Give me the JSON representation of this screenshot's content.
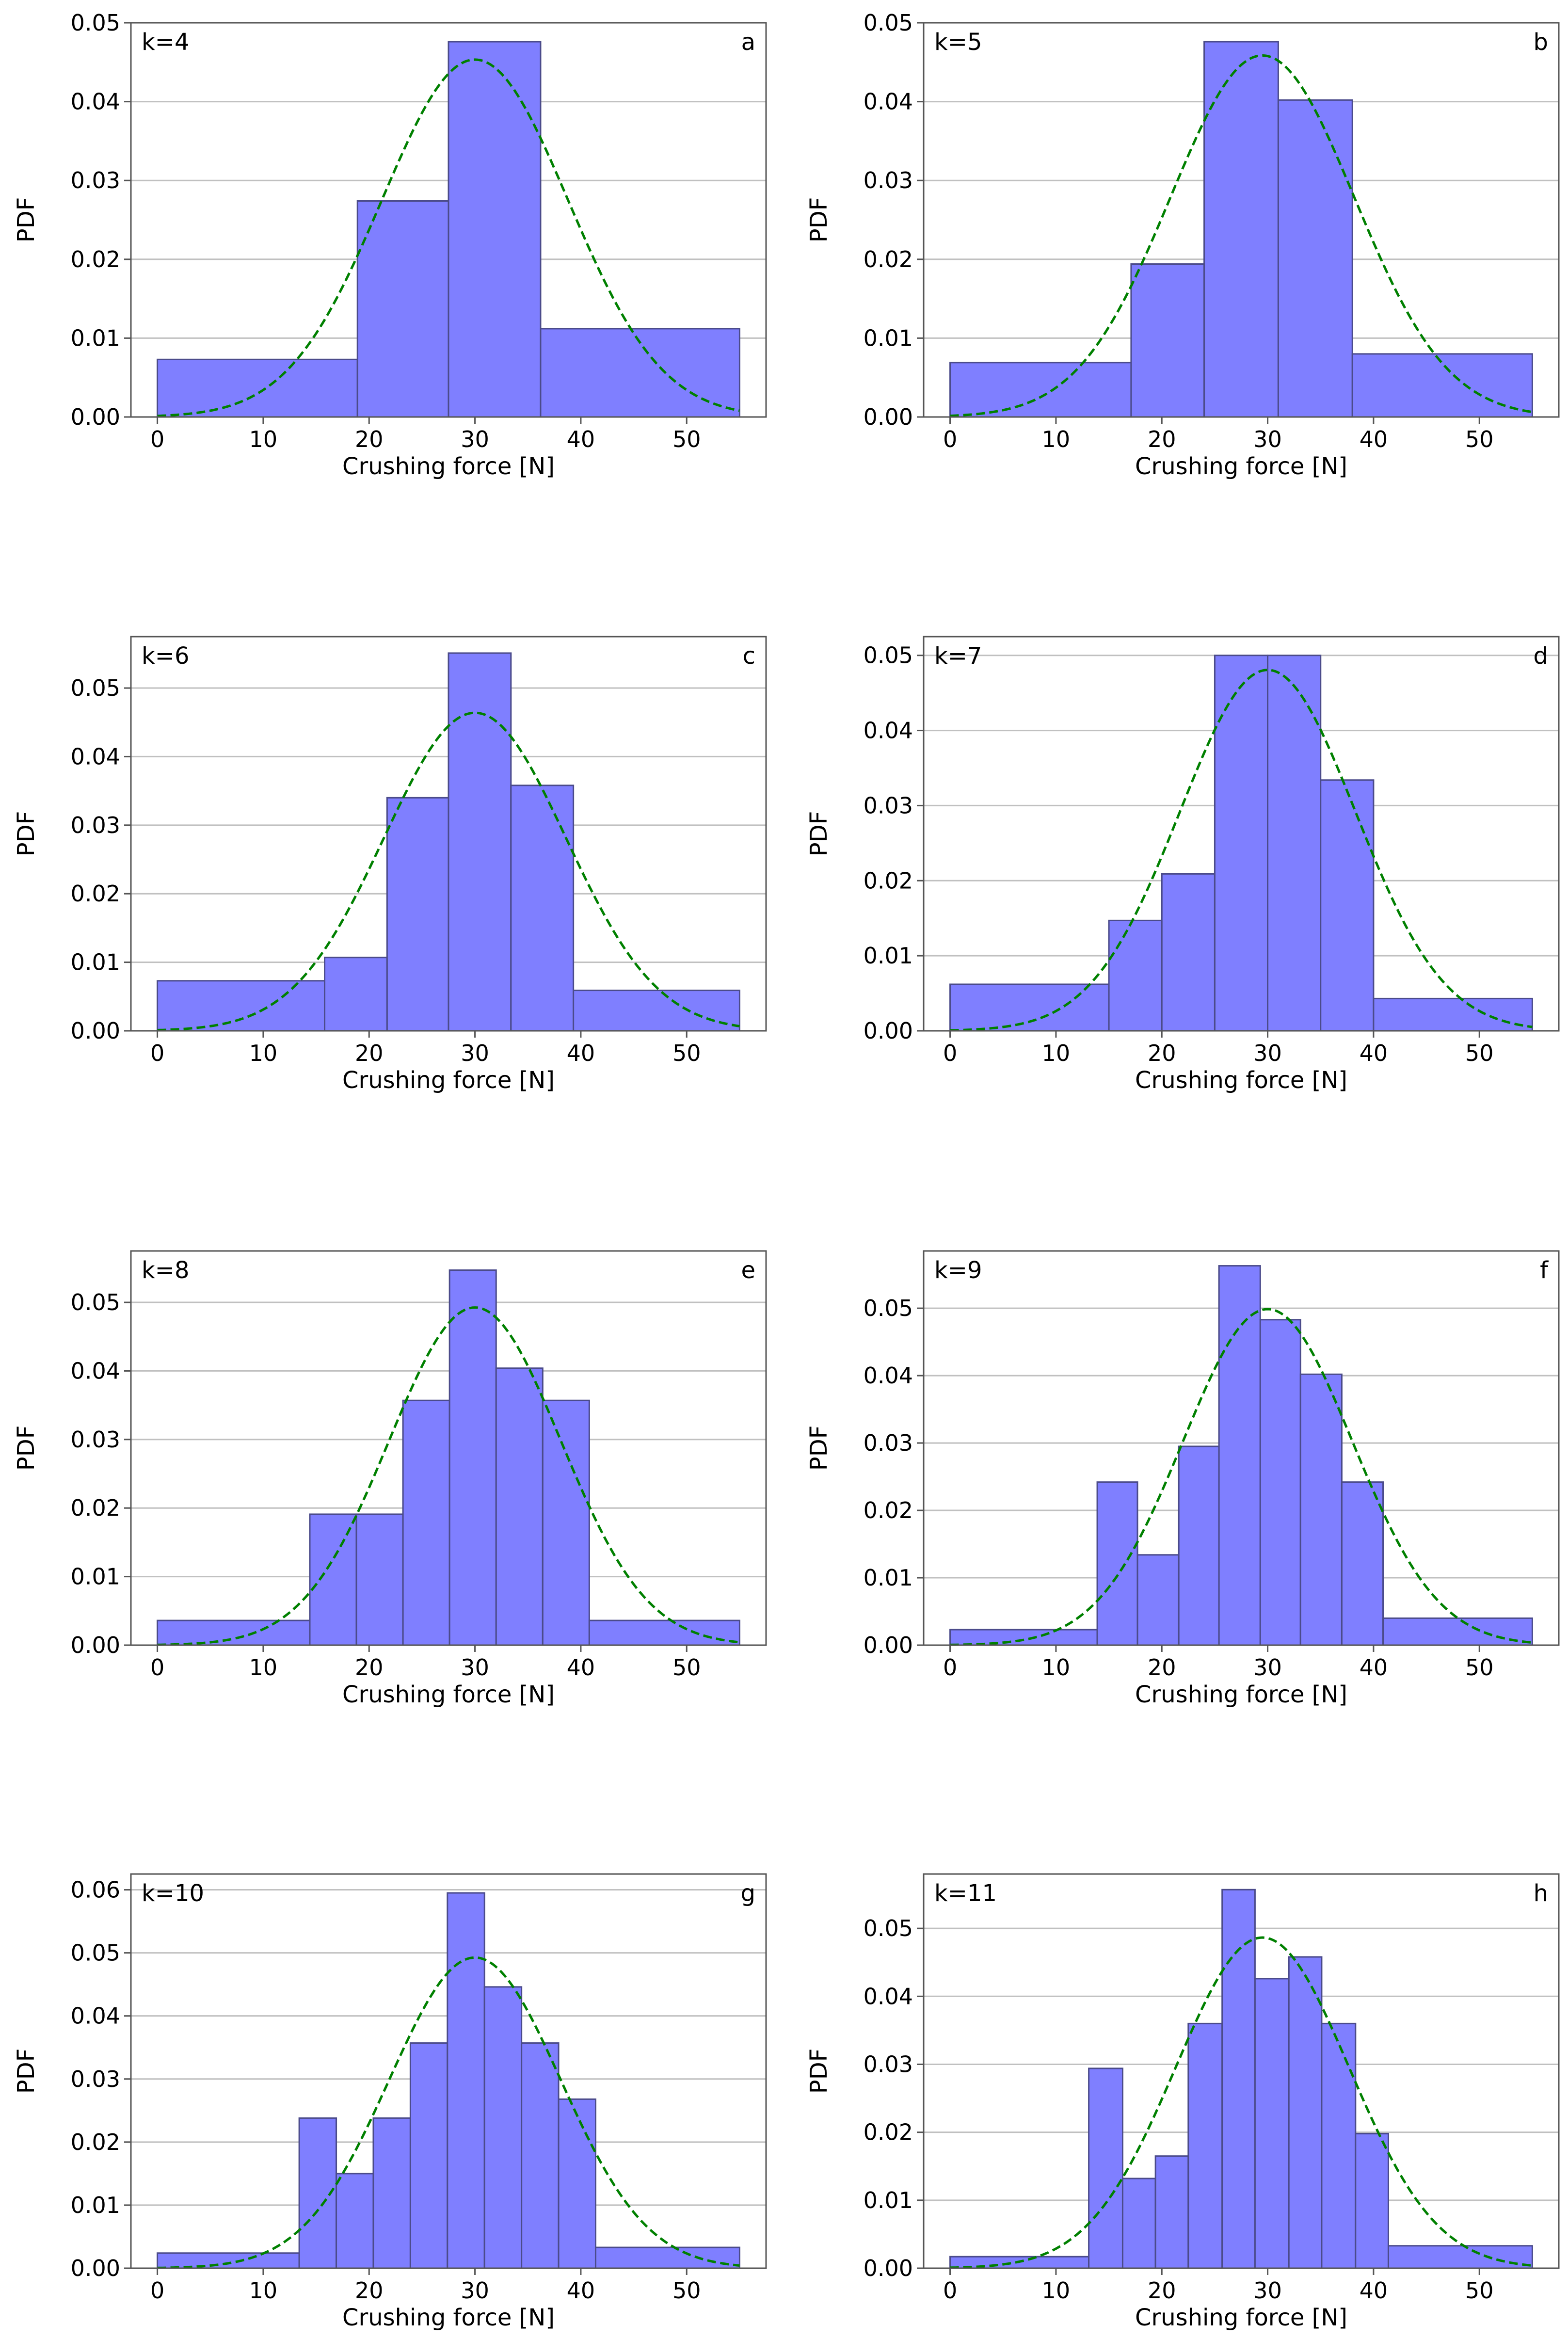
{
  "figure": {
    "type": "histogram_grid",
    "panel_layout": "4 rows x 2 columns"
  },
  "style": {
    "bar_fill": "#7f7fff",
    "bar_edge": "#4b4b8a",
    "curve_color": "#008000",
    "grid_color": "#c0c0c0",
    "axis_color": "#555555"
  },
  "chart_data": [
    {
      "type": "bar",
      "panel": "a",
      "k_label": "k=4",
      "xlabel": "Crushing force [N]",
      "ylabel": "PDF",
      "xlim": [
        -2.5,
        57.5
      ],
      "ylim": [
        0,
        0.05
      ],
      "xticks": [
        0,
        10,
        20,
        30,
        40,
        50
      ],
      "yticks": [
        0.0,
        0.01,
        0.02,
        0.03,
        0.04,
        0.05
      ],
      "ytick_labels": [
        "0.00",
        "0.01",
        "0.02",
        "0.03",
        "0.04",
        "0.05"
      ],
      "grid": "horizontal",
      "bins": [
        {
          "x0": 0,
          "x1": 18.9,
          "value": 0.0073
        },
        {
          "x0": 18.9,
          "x1": 27.5,
          "value": 0.0274
        },
        {
          "x0": 27.5,
          "x1": 36.2,
          "value": 0.0476
        },
        {
          "x0": 36.2,
          "x1": 55,
          "value": 0.0112
        }
      ],
      "normal_fit": {
        "mean": 30.0,
        "std": 8.8,
        "style": "dashed"
      }
    },
    {
      "type": "bar",
      "panel": "b",
      "k_label": "k=5",
      "xlabel": "Crushing force [N]",
      "ylabel": "PDF",
      "xlim": [
        -2.5,
        57.5
      ],
      "ylim": [
        0,
        0.05
      ],
      "xticks": [
        0,
        10,
        20,
        30,
        40,
        50
      ],
      "yticks": [
        0.0,
        0.01,
        0.02,
        0.03,
        0.04,
        0.05
      ],
      "ytick_labels": [
        "0.00",
        "0.01",
        "0.02",
        "0.03",
        "0.04",
        "0.05"
      ],
      "grid": "horizontal",
      "bins": [
        {
          "x0": 0,
          "x1": 17.1,
          "value": 0.0069
        },
        {
          "x0": 17.1,
          "x1": 24.0,
          "value": 0.0194
        },
        {
          "x0": 24.0,
          "x1": 31.0,
          "value": 0.0476
        },
        {
          "x0": 31.0,
          "x1": 38.0,
          "value": 0.0402
        },
        {
          "x0": 38.0,
          "x1": 55,
          "value": 0.008
        }
      ],
      "normal_fit": {
        "mean": 29.5,
        "std": 8.7,
        "style": "dashed"
      }
    },
    {
      "type": "bar",
      "panel": "c",
      "k_label": "k=6",
      "xlabel": "Crushing force [N]",
      "ylabel": "PDF",
      "xlim": [
        -2.5,
        57.5
      ],
      "ylim": [
        0,
        0.0575
      ],
      "xticks": [
        0,
        10,
        20,
        30,
        40,
        50
      ],
      "yticks": [
        0.0,
        0.01,
        0.02,
        0.03,
        0.04,
        0.05
      ],
      "ytick_labels": [
        "0.00",
        "0.01",
        "0.02",
        "0.03",
        "0.04",
        "0.05"
      ],
      "grid": "horizontal",
      "bins": [
        {
          "x0": 0,
          "x1": 15.8,
          "value": 0.0073
        },
        {
          "x0": 15.8,
          "x1": 21.7,
          "value": 0.0107
        },
        {
          "x0": 21.7,
          "x1": 27.5,
          "value": 0.034
        },
        {
          "x0": 27.5,
          "x1": 33.4,
          "value": 0.0551
        },
        {
          "x0": 33.4,
          "x1": 39.3,
          "value": 0.0358
        },
        {
          "x0": 39.3,
          "x1": 55,
          "value": 0.0059
        }
      ],
      "normal_fit": {
        "mean": 30.0,
        "std": 8.6,
        "style": "dashed"
      }
    },
    {
      "type": "bar",
      "panel": "d",
      "k_label": "k=7",
      "xlabel": "Crushing force [N]",
      "ylabel": "PDF",
      "xlim": [
        -2.5,
        57.5
      ],
      "ylim": [
        0,
        0.0525
      ],
      "xticks": [
        0,
        10,
        20,
        30,
        40,
        50
      ],
      "yticks": [
        0.0,
        0.01,
        0.02,
        0.03,
        0.04,
        0.05
      ],
      "ytick_labels": [
        "0.00",
        "0.01",
        "0.02",
        "0.03",
        "0.04",
        "0.05"
      ],
      "grid": "horizontal",
      "bins": [
        {
          "x0": 0,
          "x1": 15.0,
          "value": 0.0062
        },
        {
          "x0": 15.0,
          "x1": 20.0,
          "value": 0.0147
        },
        {
          "x0": 20.0,
          "x1": 25.0,
          "value": 0.0209
        },
        {
          "x0": 25.0,
          "x1": 30.0,
          "value": 0.05
        },
        {
          "x0": 30.0,
          "x1": 35.0,
          "value": 0.05
        },
        {
          "x0": 35.0,
          "x1": 40.0,
          "value": 0.0334
        },
        {
          "x0": 40.0,
          "x1": 55,
          "value": 0.0043
        }
      ],
      "normal_fit": {
        "mean": 30.0,
        "std": 8.3,
        "style": "dashed"
      }
    },
    {
      "type": "bar",
      "panel": "e",
      "k_label": "k=8",
      "xlabel": "Crushing force [N]",
      "ylabel": "PDF",
      "xlim": [
        -2.5,
        57.5
      ],
      "ylim": [
        0,
        0.0575
      ],
      "xticks": [
        0,
        10,
        20,
        30,
        40,
        50
      ],
      "yticks": [
        0.0,
        0.01,
        0.02,
        0.03,
        0.04,
        0.05
      ],
      "ytick_labels": [
        "0.00",
        "0.01",
        "0.02",
        "0.03",
        "0.04",
        "0.05"
      ],
      "grid": "horizontal",
      "bins": [
        {
          "x0": 0,
          "x1": 14.4,
          "value": 0.0036
        },
        {
          "x0": 14.4,
          "x1": 18.8,
          "value": 0.0191
        },
        {
          "x0": 18.8,
          "x1": 23.2,
          "value": 0.0191
        },
        {
          "x0": 23.2,
          "x1": 27.6,
          "value": 0.0357
        },
        {
          "x0": 27.6,
          "x1": 32.0,
          "value": 0.0547
        },
        {
          "x0": 32.0,
          "x1": 36.4,
          "value": 0.0404
        },
        {
          "x0": 36.4,
          "x1": 40.8,
          "value": 0.0357
        },
        {
          "x0": 40.8,
          "x1": 55,
          "value": 0.0036
        }
      ],
      "normal_fit": {
        "mean": 30.0,
        "std": 8.1,
        "style": "dashed"
      }
    },
    {
      "type": "bar",
      "panel": "f",
      "k_label": "k=9",
      "xlabel": "Crushing force [N]",
      "ylabel": "PDF",
      "xlim": [
        -2.5,
        57.5
      ],
      "ylim": [
        0,
        0.0585
      ],
      "xticks": [
        0,
        10,
        20,
        30,
        40,
        50
      ],
      "yticks": [
        0.0,
        0.01,
        0.02,
        0.03,
        0.04,
        0.05
      ],
      "ytick_labels": [
        "0.00",
        "0.01",
        "0.02",
        "0.03",
        "0.04",
        "0.05"
      ],
      "grid": "horizontal",
      "bins": [
        {
          "x0": 0,
          "x1": 13.9,
          "value": 0.0023
        },
        {
          "x0": 13.9,
          "x1": 17.7,
          "value": 0.0242
        },
        {
          "x0": 17.7,
          "x1": 21.6,
          "value": 0.0134
        },
        {
          "x0": 21.6,
          "x1": 25.4,
          "value": 0.0295
        },
        {
          "x0": 25.4,
          "x1": 29.3,
          "value": 0.0563
        },
        {
          "x0": 29.3,
          "x1": 33.1,
          "value": 0.0483
        },
        {
          "x0": 33.1,
          "x1": 37.0,
          "value": 0.0402
        },
        {
          "x0": 37.0,
          "x1": 40.9,
          "value": 0.0242
        },
        {
          "x0": 40.9,
          "x1": 55,
          "value": 0.004
        }
      ],
      "normal_fit": {
        "mean": 30.0,
        "std": 8.0,
        "style": "dashed"
      }
    },
    {
      "type": "bar",
      "panel": "g",
      "k_label": "k=10",
      "xlabel": "Crushing force [N]",
      "ylabel": "PDF",
      "xlim": [
        -2.5,
        57.5
      ],
      "ylim": [
        0,
        0.0625
      ],
      "xticks": [
        0,
        10,
        20,
        30,
        40,
        50
      ],
      "yticks": [
        0.0,
        0.01,
        0.02,
        0.03,
        0.04,
        0.05,
        0.06
      ],
      "ytick_labels": [
        "0.00",
        "0.01",
        "0.02",
        "0.03",
        "0.04",
        "0.05",
        "0.06"
      ],
      "grid": "horizontal",
      "bins": [
        {
          "x0": 0,
          "x1": 13.4,
          "value": 0.0024
        },
        {
          "x0": 13.4,
          "x1": 16.9,
          "value": 0.0238
        },
        {
          "x0": 16.9,
          "x1": 20.4,
          "value": 0.015
        },
        {
          "x0": 20.4,
          "x1": 23.9,
          "value": 0.0238
        },
        {
          "x0": 23.9,
          "x1": 27.4,
          "value": 0.0357
        },
        {
          "x0": 27.4,
          "x1": 30.9,
          "value": 0.0595
        },
        {
          "x0": 30.9,
          "x1": 34.4,
          "value": 0.0446
        },
        {
          "x0": 34.4,
          "x1": 37.9,
          "value": 0.0357
        },
        {
          "x0": 37.9,
          "x1": 41.4,
          "value": 0.0268
        },
        {
          "x0": 41.4,
          "x1": 55,
          "value": 0.0033
        }
      ],
      "normal_fit": {
        "mean": 30.0,
        "std": 8.1,
        "style": "dashed"
      }
    },
    {
      "type": "bar",
      "panel": "h",
      "k_label": "k=11",
      "xlabel": "Crushing force [N]",
      "ylabel": "PDF",
      "xlim": [
        -2.5,
        57.5
      ],
      "ylim": [
        0,
        0.058
      ],
      "xticks": [
        0,
        10,
        20,
        30,
        40,
        50
      ],
      "yticks": [
        0.0,
        0.01,
        0.02,
        0.03,
        0.04,
        0.05
      ],
      "ytick_labels": [
        "0.00",
        "0.01",
        "0.02",
        "0.03",
        "0.04",
        "0.05"
      ],
      "grid": "horizontal",
      "bins": [
        {
          "x0": 0,
          "x1": 13.1,
          "value": 0.0017
        },
        {
          "x0": 13.1,
          "x1": 16.3,
          "value": 0.0294
        },
        {
          "x0": 16.3,
          "x1": 19.4,
          "value": 0.0132
        },
        {
          "x0": 19.4,
          "x1": 22.5,
          "value": 0.0165
        },
        {
          "x0": 22.5,
          "x1": 25.7,
          "value": 0.036
        },
        {
          "x0": 25.7,
          "x1": 28.8,
          "value": 0.0557
        },
        {
          "x0": 28.8,
          "x1": 32.0,
          "value": 0.0426
        },
        {
          "x0": 32.0,
          "x1": 35.1,
          "value": 0.0458
        },
        {
          "x0": 35.1,
          "x1": 38.3,
          "value": 0.036
        },
        {
          "x0": 38.3,
          "x1": 41.4,
          "value": 0.0198
        },
        {
          "x0": 41.4,
          "x1": 55,
          "value": 0.0033
        }
      ],
      "normal_fit": {
        "mean": 29.5,
        "std": 8.2,
        "style": "dashed"
      }
    }
  ]
}
